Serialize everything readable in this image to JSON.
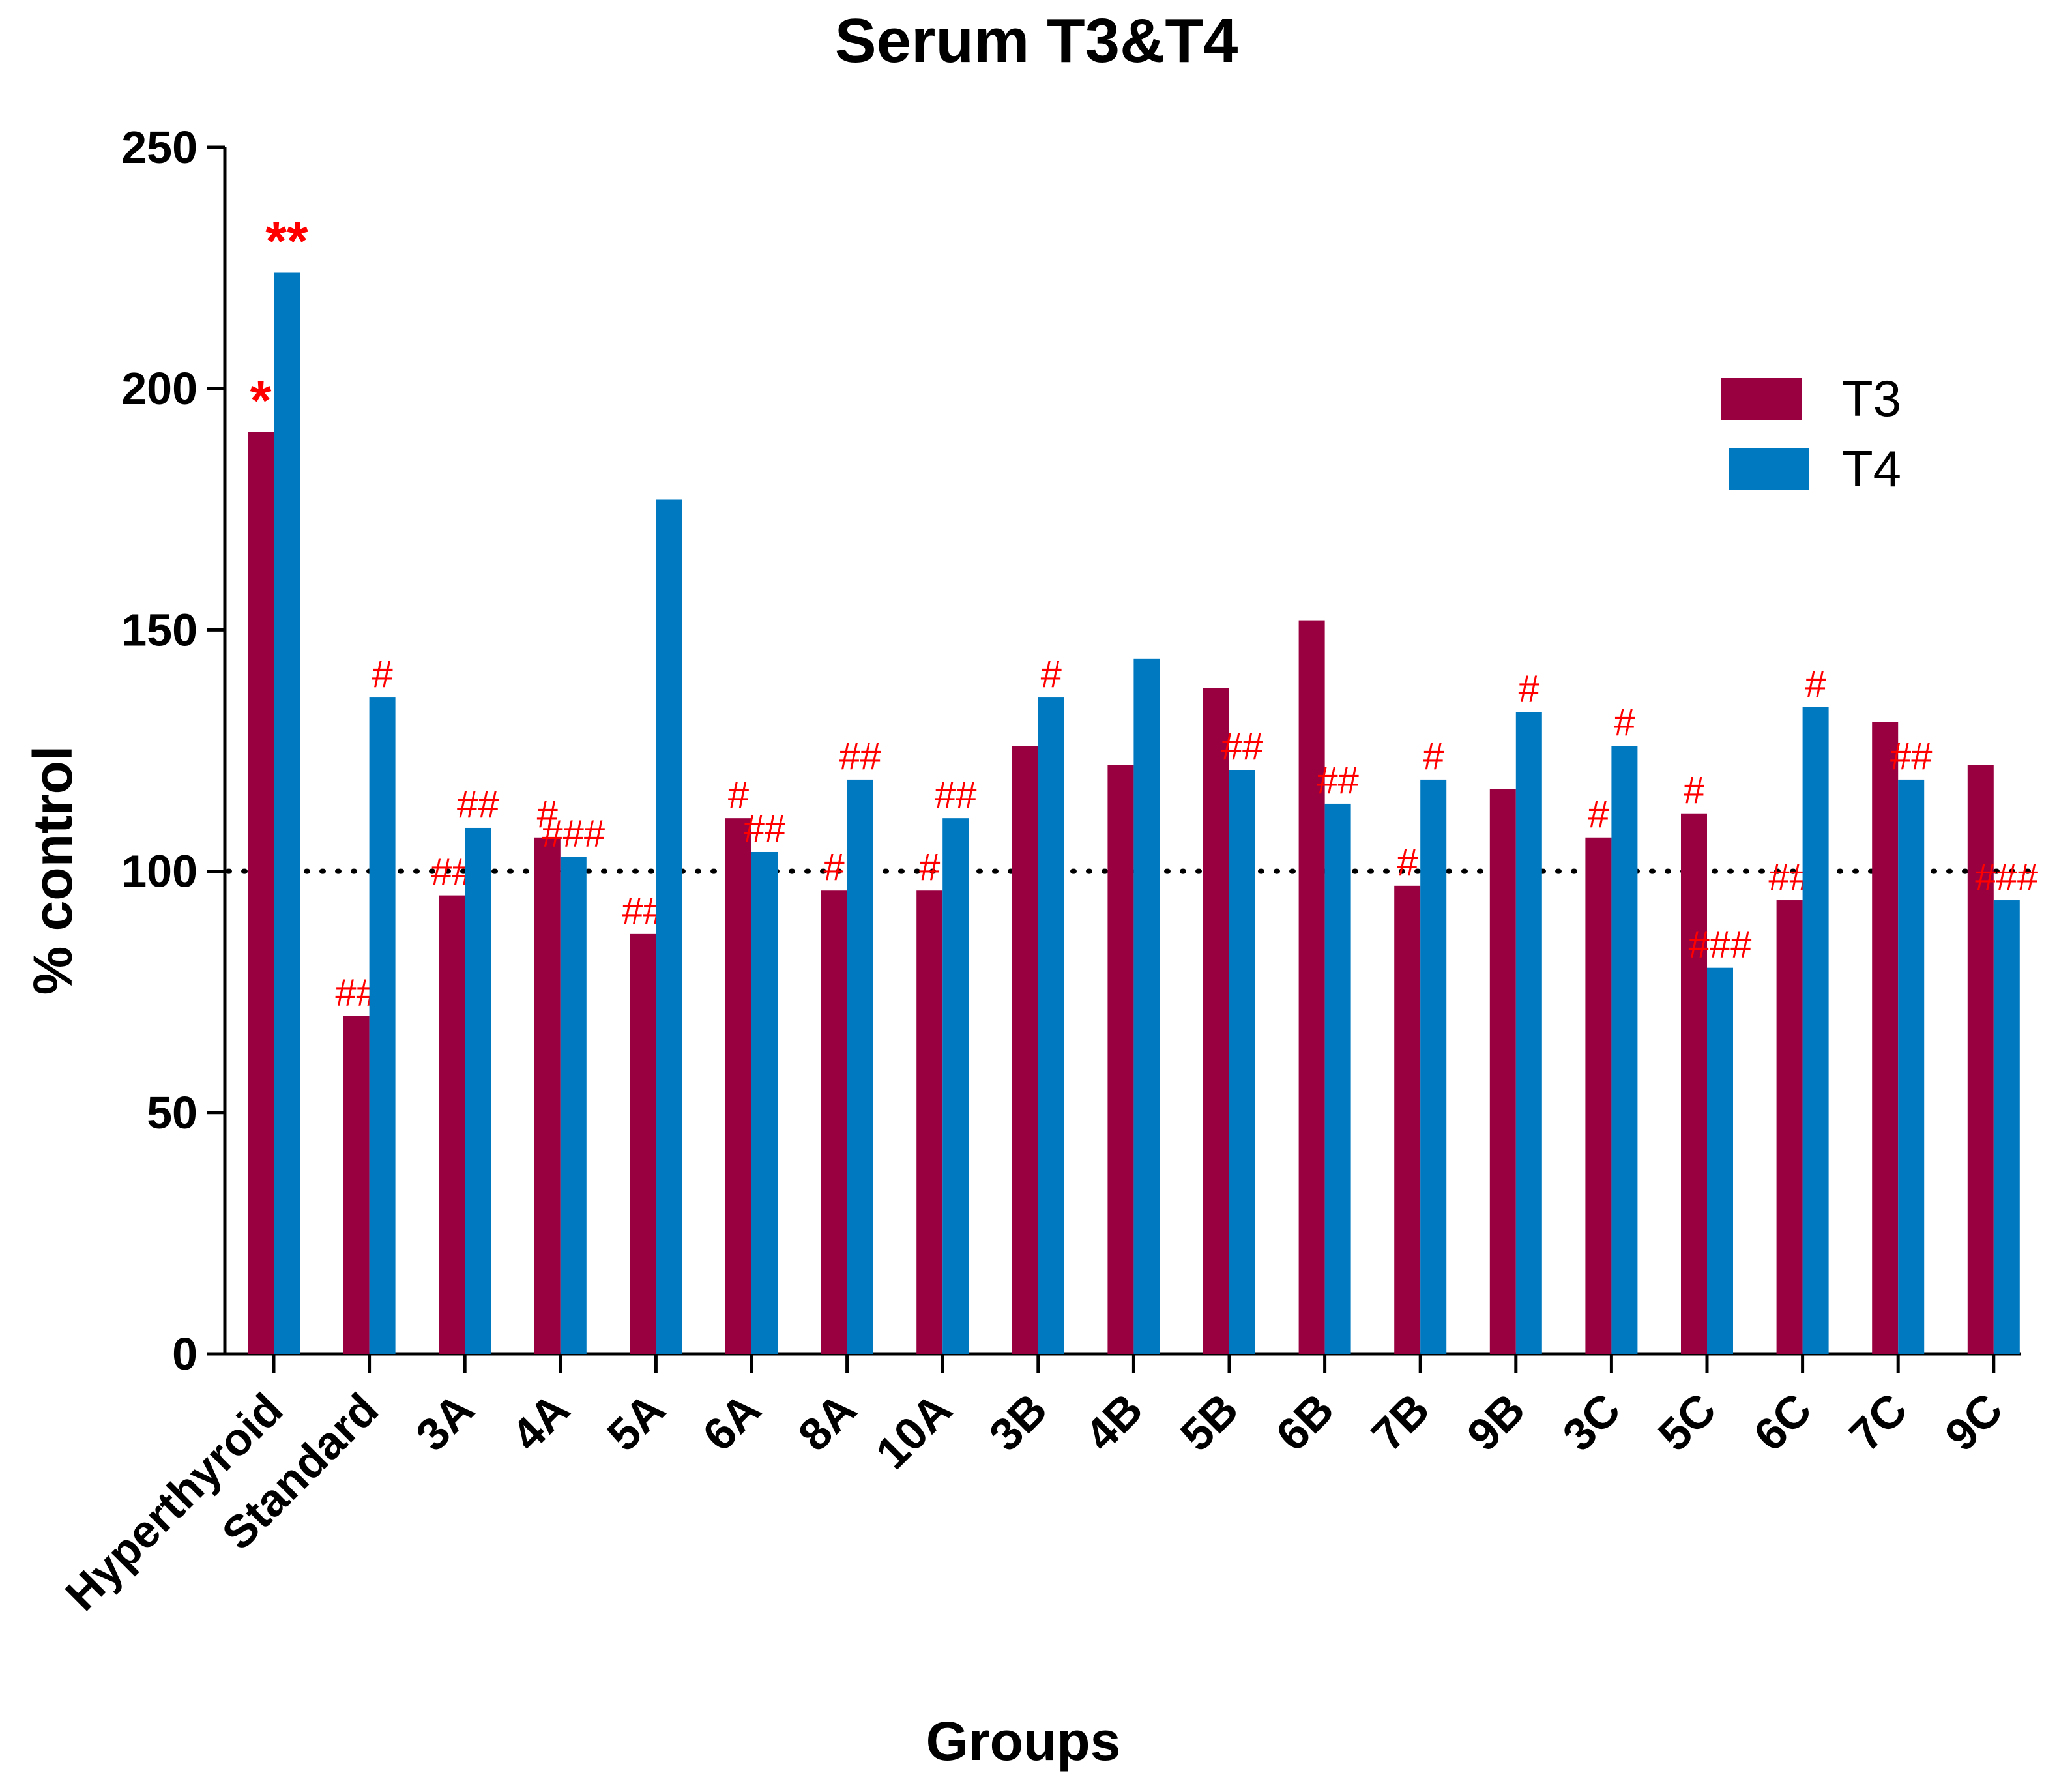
{
  "chart_data": {
    "type": "bar",
    "title": "Serum T3&T4",
    "xlabel": "Groups",
    "ylabel": "% control",
    "ylim": [
      0,
      250
    ],
    "yticks": [
      "0",
      "50",
      "100",
      "150",
      "200",
      "250"
    ],
    "reference_line": 100,
    "categories": [
      "Hyperthyroid",
      "Standard",
      "3A",
      "4A",
      "5A",
      "6A",
      "8A",
      "10A",
      "3B",
      "4B",
      "5B",
      "6B",
      "7B",
      "9B",
      "3C",
      "5C",
      "6C",
      "7C",
      "9C"
    ],
    "series": [
      {
        "name": "T3",
        "color": "#990040",
        "values": [
          191,
          70,
          95,
          107,
          87,
          111,
          96,
          96,
          126,
          122,
          138,
          152,
          97,
          117,
          107,
          112,
          94,
          131,
          122
        ],
        "annotations": [
          "*",
          "##",
          "##",
          "#",
          "##",
          "#",
          "#",
          "#",
          "",
          "",
          "",
          "",
          "#",
          "",
          "#",
          "#",
          "##",
          "",
          ""
        ]
      },
      {
        "name": "T4",
        "color": "#0079C1",
        "values": [
          224,
          136,
          109,
          103,
          177,
          104,
          119,
          111,
          136,
          144,
          121,
          114,
          119,
          133,
          126,
          80,
          134,
          119,
          94
        ],
        "annotations": [
          "**",
          "#",
          "##",
          "###",
          "",
          "##",
          "##",
          "##",
          "#",
          "",
          "##",
          "##",
          "#",
          "#",
          "#",
          "###",
          "#",
          "##",
          "###"
        ]
      }
    ],
    "legend_position": "top-right"
  }
}
